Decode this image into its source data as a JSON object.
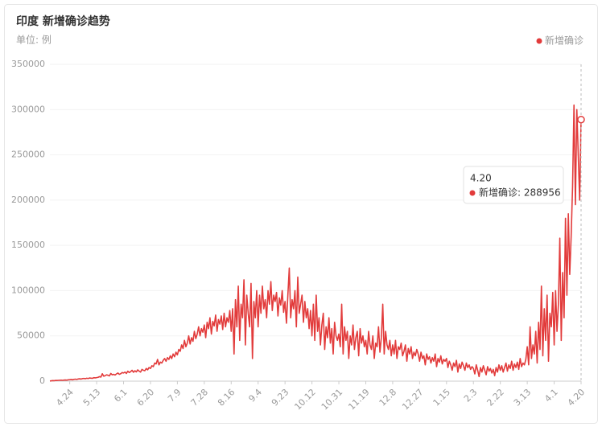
{
  "chart_data": {
    "type": "line",
    "title": "印度 新增确诊趋势",
    "subtitle": "单位: 例",
    "categories": [
      null,
      null,
      null,
      null,
      null,
      null,
      null,
      null,
      null,
      null,
      null,
      null,
      null,
      null,
      "4.24",
      null,
      null,
      null,
      null,
      null,
      null,
      null,
      null,
      null,
      null,
      null,
      null,
      null,
      null,
      null,
      null,
      null,
      null,
      "5.13",
      null,
      null,
      null,
      null,
      null,
      null,
      null,
      null,
      null,
      null,
      null,
      null,
      null,
      null,
      null,
      null,
      null,
      null,
      "6.1",
      null,
      null,
      null,
      null,
      null,
      null,
      null,
      null,
      null,
      null,
      null,
      null,
      null,
      null,
      null,
      null,
      null,
      null,
      "6.20",
      null,
      null,
      null,
      null,
      null,
      null,
      null,
      null,
      null,
      null,
      null,
      null,
      null,
      null,
      null,
      null,
      null,
      null,
      "7.9",
      null,
      null,
      null,
      null,
      null,
      null,
      null,
      null,
      null,
      null,
      null,
      null,
      null,
      null,
      null,
      null,
      null,
      null,
      "7.28",
      null,
      null,
      null,
      null,
      null,
      null,
      null,
      null,
      null,
      null,
      null,
      null,
      null,
      null,
      null,
      null,
      null,
      null,
      "8.16",
      null,
      null,
      null,
      null,
      null,
      null,
      null,
      null,
      null,
      null,
      null,
      null,
      null,
      null,
      null,
      null,
      null,
      null,
      "9.4",
      null,
      null,
      null,
      null,
      null,
      null,
      null,
      null,
      null,
      null,
      null,
      null,
      null,
      null,
      null,
      null,
      null,
      null,
      "9.23",
      null,
      null,
      null,
      null,
      null,
      null,
      null,
      null,
      null,
      null,
      null,
      null,
      null,
      null,
      null,
      null,
      null,
      null,
      "10.12",
      null,
      null,
      null,
      null,
      null,
      null,
      null,
      null,
      null,
      null,
      null,
      null,
      null,
      null,
      null,
      null,
      null,
      null,
      "10.31",
      null,
      null,
      null,
      null,
      null,
      null,
      null,
      null,
      null,
      null,
      null,
      null,
      null,
      null,
      null,
      null,
      null,
      null,
      "11.19",
      null,
      null,
      null,
      null,
      null,
      null,
      null,
      null,
      null,
      null,
      null,
      null,
      null,
      null,
      null,
      null,
      null,
      null,
      "12.8",
      null,
      null,
      null,
      null,
      null,
      null,
      null,
      null,
      null,
      null,
      null,
      null,
      null,
      null,
      null,
      null,
      null,
      null,
      "12.27",
      null,
      null,
      null,
      null,
      null,
      null,
      null,
      null,
      null,
      null,
      null,
      null,
      null,
      null,
      null,
      null,
      null,
      null,
      "1.15",
      null,
      null,
      null,
      null,
      null,
      null,
      null,
      null,
      null,
      null,
      null,
      null,
      null,
      null,
      null,
      null,
      null,
      null,
      "2.3",
      null,
      null,
      null,
      null,
      null,
      null,
      null,
      null,
      null,
      null,
      null,
      null,
      null,
      null,
      null,
      null,
      null,
      null,
      "2.22",
      null,
      null,
      null,
      null,
      null,
      null,
      null,
      null,
      null,
      null,
      null,
      null,
      null,
      null,
      null,
      null,
      null,
      null,
      "3.13",
      null,
      null,
      null,
      null,
      null,
      null,
      null,
      null,
      null,
      null,
      null,
      null,
      null,
      null,
      null,
      null,
      null,
      null,
      "4.1",
      null,
      null,
      null,
      null,
      null,
      null,
      null,
      null,
      null,
      null,
      null,
      null,
      null,
      null,
      null,
      null,
      null,
      null,
      "4.20"
    ],
    "series": [
      {
        "name": "新增确诊",
        "color": "#e23b3b",
        "values": [
          200,
          400,
          600,
          500,
          800,
          700,
          900,
          1000,
          1100,
          900,
          1200,
          1300,
          1100,
          1500,
          1600,
          1800,
          1500,
          2000,
          2200,
          1900,
          2400,
          2600,
          2300,
          2800,
          3000,
          2700,
          3200,
          2900,
          3500,
          3300,
          3100,
          3800,
          3600,
          3900,
          4200,
          5000,
          4500,
          8200,
          5500,
          6000,
          7000,
          6500,
          5800,
          8500,
          7000,
          7500,
          6800,
          8000,
          9000,
          7500,
          8200,
          9500,
          9000,
          10000,
          8500,
          11000,
          9500,
          10500,
          12000,
          9800,
          11500,
          10200,
          12500,
          11000,
          10000,
          13000,
          12000,
          11500,
          14000,
          12500,
          15000,
          14000,
          17000,
          16000,
          20000,
          19000,
          24000,
          18000,
          21000,
          20000,
          23000,
          25000,
          22000,
          26000,
          24000,
          28000,
          25000,
          30000,
          27000,
          32000,
          29000,
          35000,
          33000,
          40000,
          36000,
          45000,
          38000,
          42000,
          50000,
          41000,
          48000,
          44000,
          55000,
          47000,
          52000,
          60000,
          50000,
          58000,
          54000,
          62000,
          48000,
          65000,
          58000,
          70000,
          52000,
          66000,
          61000,
          73000,
          55000,
          68000,
          63000,
          72000,
          57000,
          75000,
          60000,
          70000,
          65000,
          78000,
          55000,
          80000,
          30000,
          90000,
          60000,
          105000,
          45000,
          85000,
          70000,
          112000,
          40000,
          95000,
          75000,
          60000,
          108000,
          25000,
          88000,
          70000,
          100000,
          60000,
          95000,
          75000,
          105000,
          80000,
          90000,
          70000,
          100000,
          85000,
          110000,
          78000,
          95000,
          88000,
          98000,
          72000,
          92000,
          84000,
          100000,
          76000,
          88000,
          64000,
          95000,
          125000,
          70000,
          90000,
          80000,
          100000,
          60000,
          115000,
          75000,
          85000,
          95000,
          65000,
          88000,
          70000,
          80000,
          58000,
          78000,
          50000,
          85000,
          45000,
          95000,
          55000,
          70000,
          40000,
          62000,
          75000,
          35000,
          60000,
          48000,
          70000,
          42000,
          58000,
          30000,
          65000,
          50000,
          45000,
          52000,
          38000,
          85000,
          30000,
          60000,
          45000,
          55000,
          25000,
          50000,
          40000,
          62000,
          35000,
          48000,
          55000,
          28000,
          58000,
          42000,
          50000,
          38000,
          45000,
          30000,
          55000,
          40000,
          35000,
          50000,
          25000,
          42000,
          38000,
          60000,
          32000,
          48000,
          85000,
          30000,
          55000,
          40000,
          35000,
          45000,
          28000,
          40000,
          30000,
          45000,
          25000,
          38000,
          35000,
          42000,
          28000,
          33000,
          40000,
          22000,
          36000,
          30000,
          38000,
          25000,
          32000,
          28000,
          35000,
          30000,
          22000,
          32000,
          25000,
          28000,
          18000,
          30000,
          24000,
          27000,
          20000,
          26000,
          22000,
          30000,
          16000,
          25000,
          21000,
          28000,
          19000,
          24000,
          22000,
          25000,
          15000,
          22000,
          18000,
          12000,
          20000,
          16000,
          23000,
          10000,
          19000,
          14000,
          21000,
          17000,
          12000,
          20000,
          15000,
          18000,
          13000,
          16000,
          14000,
          8000,
          18000,
          12000,
          5000,
          15000,
          10000,
          17000,
          12000,
          7000,
          16000,
          11000,
          14000,
          9000,
          13000,
          6000,
          15000,
          10000,
          18000,
          12000,
          17000,
          10000,
          15000,
          20000,
          11000,
          18000,
          14000,
          22000,
          12000,
          19000,
          15000,
          21000,
          13000,
          25000,
          16000,
          20000,
          18000,
          24000,
          38000,
          18000,
          60000,
          25000,
          40000,
          30000,
          55000,
          20000,
          65000,
          35000,
          105000,
          28000,
          80000,
          45000,
          95000,
          22000,
          75000,
          60000,
          98000,
          40000,
          100000,
          55000,
          85000,
          158000,
          45000,
          120000,
          70000,
          180000,
          95000,
          185000,
          118000,
          160000,
          215000,
          305000,
          195000,
          300000,
          250000,
          200000,
          288956
        ]
      }
    ],
    "ylim": [
      0,
      350000
    ],
    "yticks": [
      0,
      50000,
      100000,
      150000,
      200000,
      250000,
      300000,
      350000
    ],
    "grid": true,
    "legend": "top-right",
    "tooltip": {
      "title": "4.20",
      "text": "新增确诊: 288956"
    }
  }
}
